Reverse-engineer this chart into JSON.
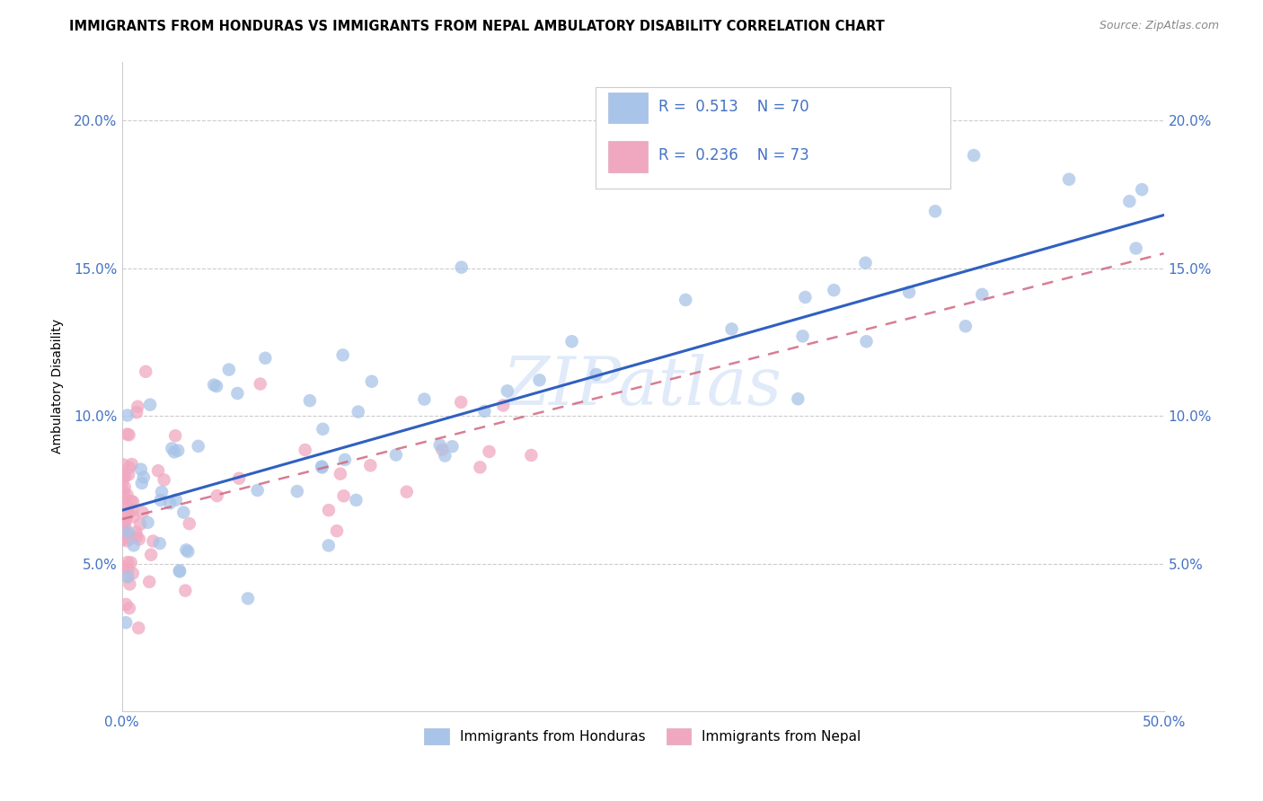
{
  "title": "IMMIGRANTS FROM HONDURAS VS IMMIGRANTS FROM NEPAL AMBULATORY DISABILITY CORRELATION CHART",
  "source": "Source: ZipAtlas.com",
  "ylabel": "Ambulatory Disability",
  "xlim": [
    0,
    0.5
  ],
  "ylim": [
    0,
    0.22
  ],
  "xticks": [
    0.0,
    0.1,
    0.2,
    0.3,
    0.4,
    0.5
  ],
  "xticklabels": [
    "0.0%",
    "",
    "",
    "",
    "",
    "50.0%"
  ],
  "yticks": [
    0.05,
    0.1,
    0.15,
    0.2
  ],
  "yticklabels": [
    "5.0%",
    "10.0%",
    "15.0%",
    "20.0%"
  ],
  "color_honduras": "#a8c4e8",
  "color_nepal": "#f0a8c0",
  "line_color_honduras": "#3060c0",
  "line_color_nepal": "#d06880",
  "watermark": "ZIPatlas",
  "legend_r1": "R = 0.513",
  "legend_n1": "N = 70",
  "legend_r2": "R = 0.236",
  "legend_n2": "N = 73",
  "honduras_line_x0": 0.0,
  "honduras_line_x1": 0.5,
  "honduras_line_y0": 0.068,
  "honduras_line_y1": 0.168,
  "nepal_line_x0": 0.0,
  "nepal_line_x1": 0.5,
  "nepal_line_y0": 0.065,
  "nepal_line_y1": 0.155
}
